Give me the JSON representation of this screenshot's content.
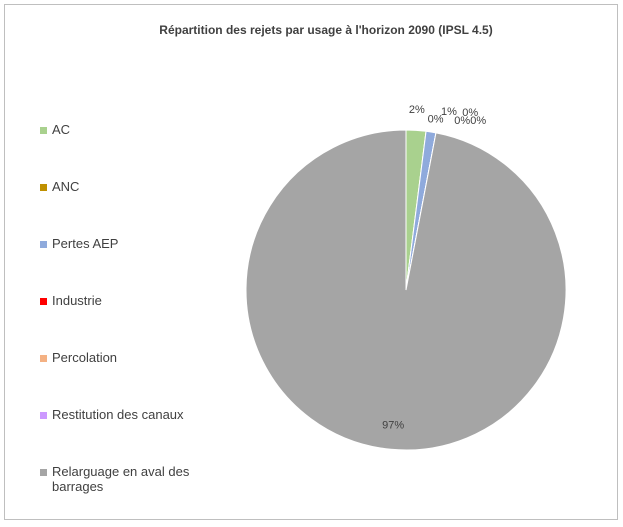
{
  "chart_data": {
    "type": "pie",
    "title": "Répartition des rejets par usage à l'horizon 2090 (IPSL 4.5)",
    "categories": [
      "AC",
      "ANC",
      "Pertes AEP",
      "Industrie",
      "Percolation",
      "Restitution des canaux",
      "Relarguage en aval des barrages"
    ],
    "values": [
      2,
      0,
      1,
      0,
      0,
      0,
      97
    ],
    "value_labels": [
      "2%",
      "0%",
      "1%",
      "0%",
      "0%",
      "0%",
      "97%"
    ],
    "colors": [
      "#a9d18e",
      "#bf9000",
      "#8faadc",
      "#ff0000",
      "#f4b183",
      "#cc99ff",
      "#a5a5a5"
    ],
    "legend": "left"
  }
}
